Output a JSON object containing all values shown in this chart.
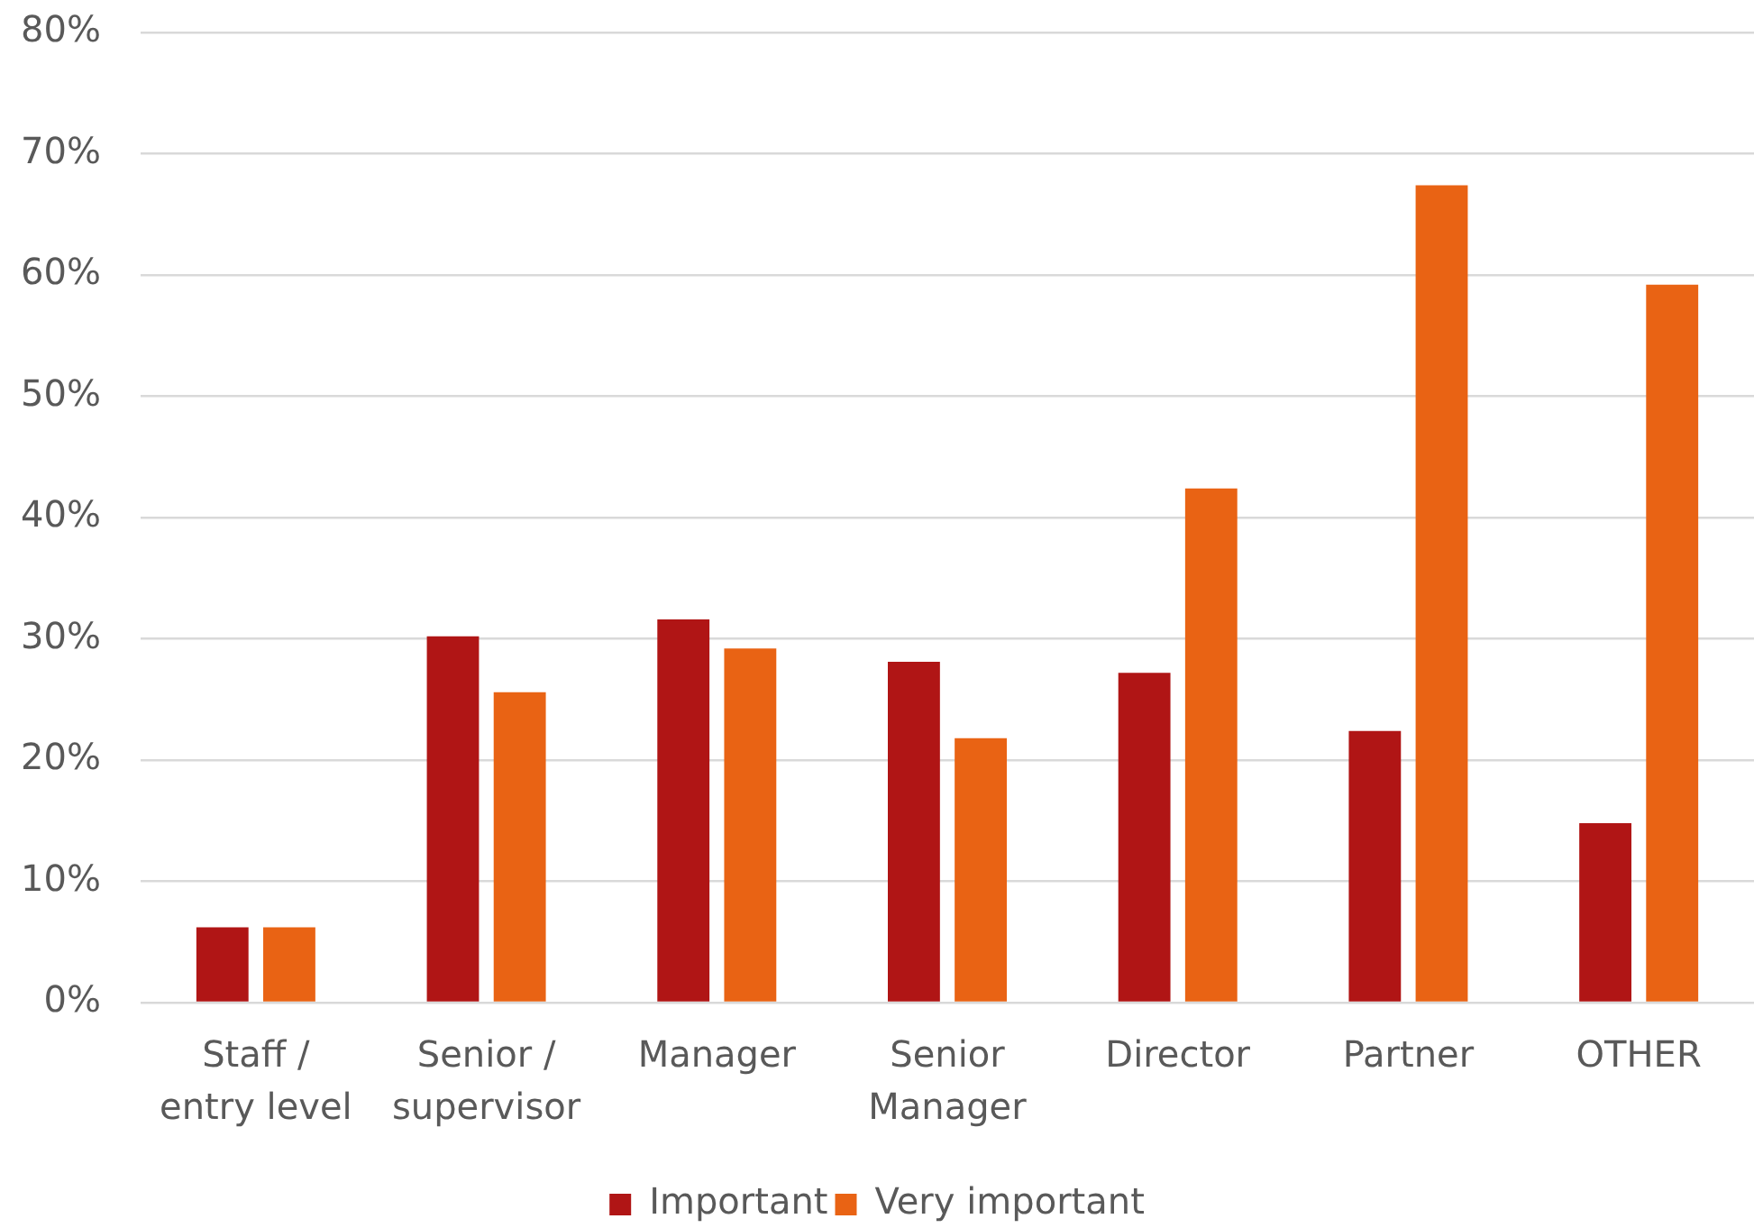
{
  "chart_data": {
    "type": "bar",
    "categories": [
      "Staff / entry level",
      "Senior / supervisor",
      "Manager",
      "Senior Manager",
      "Director",
      "Partner",
      "OTHER"
    ],
    "series": [
      {
        "name": "Important",
        "color": "#b01515",
        "values": [
          6.2,
          30.2,
          31.6,
          28.1,
          27.2,
          22.4,
          14.8
        ]
      },
      {
        "name": "Very important",
        "color": "#e96314",
        "values": [
          6.2,
          25.6,
          29.2,
          21.8,
          42.4,
          67.4,
          59.2
        ]
      }
    ],
    "ylim": [
      0,
      80
    ],
    "yticks": [
      {
        "value": 0,
        "label": "0%"
      },
      {
        "value": 10,
        "label": "10%"
      },
      {
        "value": 20,
        "label": "20%"
      },
      {
        "value": 30,
        "label": "30%"
      },
      {
        "value": 40,
        "label": "40%"
      },
      {
        "value": 50,
        "label": "50%"
      },
      {
        "value": 60,
        "label": "60%"
      },
      {
        "value": 70,
        "label": "70%"
      },
      {
        "value": 80,
        "label": "80%"
      }
    ],
    "grid": "y",
    "legend": "bottom"
  }
}
